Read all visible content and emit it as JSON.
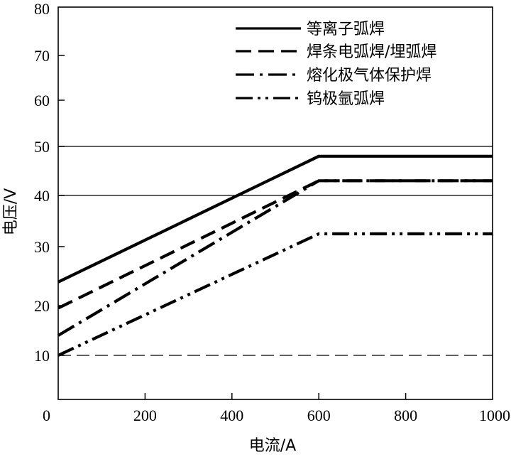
{
  "chart_data": {
    "type": "line",
    "xlabel": "电流/A",
    "ylabel": "电压/V",
    "xlim": [
      0,
      1000
    ],
    "ylim": [
      0,
      80
    ],
    "x_scale": "linear",
    "y_scale": "piecewise",
    "x_ticks": [
      0,
      200,
      400,
      600,
      800,
      1000
    ],
    "y_ticks": [
      10,
      20,
      30,
      40,
      50,
      60,
      70,
      80
    ],
    "y_tick_labels": [
      "10",
      "20",
      "30",
      "40",
      "50",
      "60",
      "70",
      "80"
    ],
    "x_tick_labels": [
      "0",
      "200",
      "400",
      "600",
      "800",
      "1000"
    ],
    "grid": false,
    "legend_position": "top-right",
    "reference_lines": [
      {
        "y": 50,
        "style": "thin-solid"
      },
      {
        "y": 40,
        "style": "thin-solid"
      },
      {
        "y": 10,
        "style": "thin-dashed"
      }
    ],
    "series": [
      {
        "name": "等离子弧焊",
        "style": "solid",
        "x": [
          0,
          600,
          1000
        ],
        "y": [
          24,
          48,
          48
        ]
      },
      {
        "name": "焊条电弧焊/埋弧焊",
        "style": "dashed",
        "x": [
          0,
          600,
          1000
        ],
        "y": [
          19.5,
          43,
          43
        ]
      },
      {
        "name": "熔化极气体保护焊",
        "style": "dash-dot",
        "x": [
          0,
          600,
          1000
        ],
        "y": [
          14,
          43,
          43
        ]
      },
      {
        "name": "钨极氩弧焊",
        "style": "dash-dot-dot",
        "x": [
          0,
          600,
          1000
        ],
        "y": [
          10,
          32.5,
          32.5
        ]
      }
    ]
  }
}
